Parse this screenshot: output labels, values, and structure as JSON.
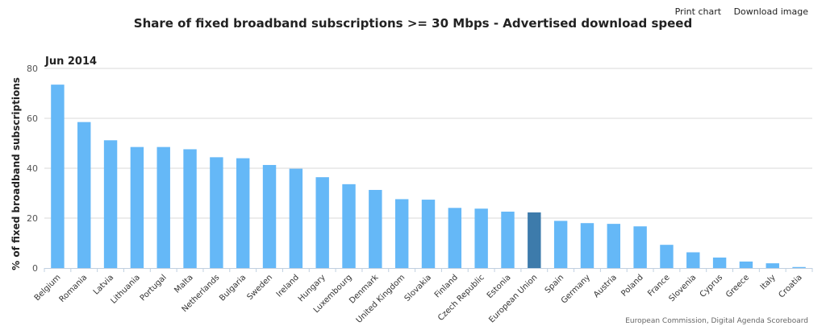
{
  "toolbar": {
    "print_label": "Print chart",
    "download_label": "Download image"
  },
  "credits": "European Commission, Digital Agenda Scoreboard",
  "chart_data": {
    "type": "bar",
    "title": "Share of fixed broadband subscriptions >= 30 Mbps - Advertised download speed",
    "subtitle": "Jun 2014",
    "ylabel": "% of fixed broadband subscriptions",
    "xlabel": "",
    "ylim": [
      0,
      80
    ],
    "yticks": [
      0,
      20,
      40,
      60,
      80
    ],
    "grid": true,
    "categories": [
      "Belgium",
      "Romania",
      "Latvia",
      "Lithuania",
      "Portugal",
      "Malta",
      "Netherlands",
      "Bulgaria",
      "Sweden",
      "Ireland",
      "Hungary",
      "Luxembourg",
      "Denmark",
      "United Kingdom",
      "Slovakia",
      "Finland",
      "Czech Republic",
      "Estonia",
      "European Union",
      "Spain",
      "Germany",
      "Austria",
      "Poland",
      "France",
      "Slovenia",
      "Cyprus",
      "Greece",
      "Italy",
      "Croatia"
    ],
    "values": [
      73.5,
      58.5,
      51.2,
      48.5,
      48.5,
      47.6,
      44.4,
      44.0,
      41.3,
      39.8,
      36.4,
      33.6,
      31.3,
      27.6,
      27.4,
      24.1,
      23.8,
      22.6,
      22.3,
      18.9,
      18.0,
      17.7,
      16.7,
      9.3,
      6.3,
      4.2,
      2.6,
      1.9,
      0.4
    ],
    "highlight": "European Union",
    "colors": {
      "bar": "#65b8f7",
      "highlight": "#3d7bab",
      "grid": "#d8d8d8",
      "axis": "#c0d0e0"
    }
  }
}
